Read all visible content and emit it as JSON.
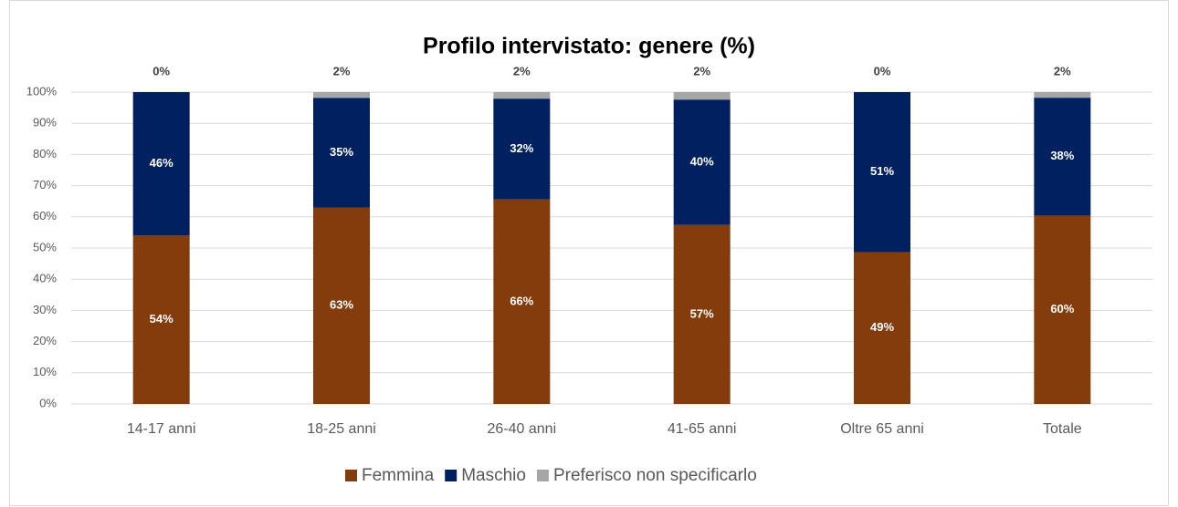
{
  "chart_data": {
    "type": "stacked_bar",
    "title": "Profilo intervistato: genere (%)",
    "categories": [
      "14-17 anni",
      "18-25 anni",
      "26-40 anni",
      "41-65 anni",
      "Oltre 65 anni",
      "Totale"
    ],
    "series": [
      {
        "name": "Femmina",
        "color": "#843c0c",
        "values": [
          54,
          63.0,
          65.6,
          57.4,
          48.7,
          60.4
        ],
        "value_labels": [
          "54%",
          "63%",
          "66%",
          "57%",
          "49%",
          "60%"
        ]
      },
      {
        "name": "Maschio",
        "color": "#002060",
        "values": [
          46,
          35.1,
          32.3,
          40.2,
          51.3,
          37.8
        ],
        "value_labels": [
          "46%",
          "35%",
          "32%",
          "40%",
          "51%",
          "38%"
        ]
      },
      {
        "name": "Preferisco non specificarlo",
        "color": "#a6a6a6",
        "values": [
          0,
          1.9,
          2.1,
          2.4,
          0,
          1.8
        ],
        "value_labels": [
          "0%",
          "2%",
          "2%",
          "2%",
          "0%",
          "2%"
        ]
      }
    ],
    "ylim": [
      0,
      100
    ],
    "yticks": [
      {
        "value": 0,
        "label": "0%"
      },
      {
        "value": 10,
        "label": "10%"
      },
      {
        "value": 20,
        "label": "20%"
      },
      {
        "value": 30,
        "label": "30%"
      },
      {
        "value": 40,
        "label": "40%"
      },
      {
        "value": 50,
        "label": "50%"
      },
      {
        "value": 60,
        "label": "60%"
      },
      {
        "value": 70,
        "label": "70%"
      },
      {
        "value": 80,
        "label": "80%"
      },
      {
        "value": 90,
        "label": "90%"
      },
      {
        "value": 100,
        "label": "100%"
      }
    ],
    "grid": true,
    "legend": "bottom"
  }
}
